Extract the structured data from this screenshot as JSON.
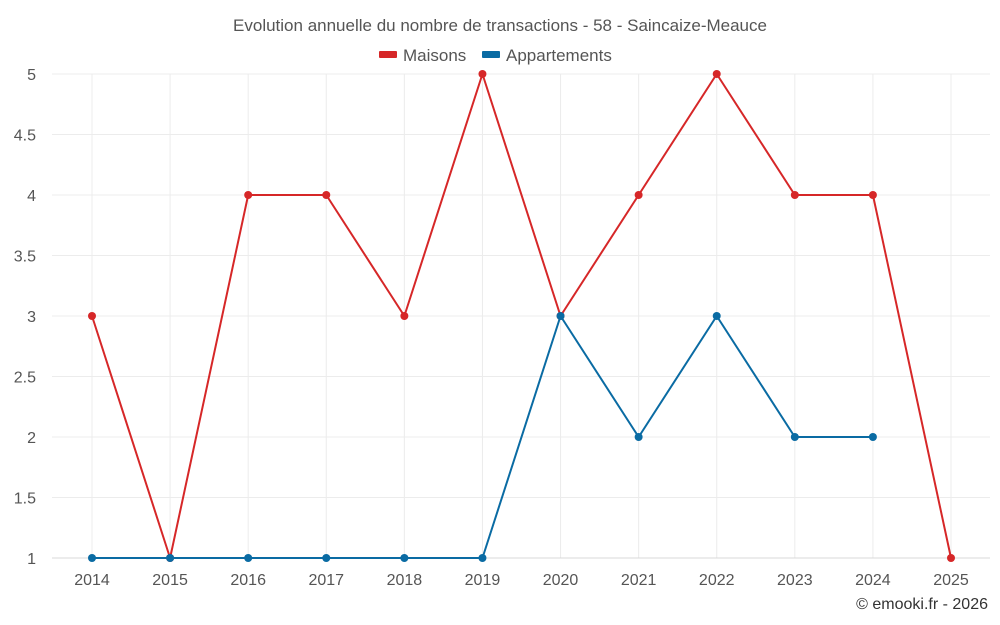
{
  "chart_data": {
    "type": "line",
    "title": "Evolution annuelle du nombre de transactions - 58 - Saincaize-Meauce",
    "categories": [
      "2014",
      "2015",
      "2016",
      "2017",
      "2018",
      "2019",
      "2020",
      "2021",
      "2022",
      "2023",
      "2024",
      "2025"
    ],
    "series": [
      {
        "name": "Maisons",
        "color": "#d62728",
        "values": [
          3,
          1,
          4,
          4,
          3,
          5,
          3,
          4,
          5,
          4,
          4,
          1
        ]
      },
      {
        "name": "Appartements",
        "color": "#0a6ba3",
        "values": [
          1,
          1,
          1,
          1,
          1,
          1,
          3,
          2,
          3,
          2,
          2,
          null
        ]
      }
    ],
    "ylim": [
      1,
      5
    ],
    "yticks": [
      "1",
      "1.5",
      "2",
      "2.5",
      "3",
      "3.5",
      "4",
      "4.5",
      "5"
    ],
    "xlabel": "",
    "ylabel": "",
    "grid": true,
    "legend": "top-center"
  },
  "credit": "© emooki.fr - 2026"
}
